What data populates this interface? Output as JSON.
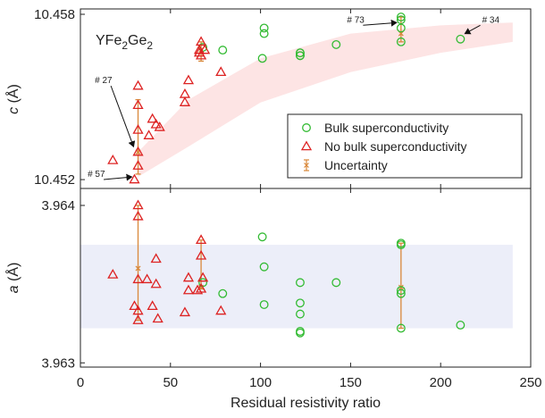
{
  "chart_data": [
    {
      "type": "scatter",
      "panel": "top",
      "ylabel_var": "c",
      "ylabel_unit": " (Å)",
      "xlim": [
        0,
        250
      ],
      "ylim": [
        10.452,
        10.458
      ],
      "yticks": [
        10.452,
        10.458
      ],
      "ytick_labels": [
        "10.452",
        "10.458"
      ],
      "material": {
        "base": "YFe",
        "sub1": "2",
        "mid": "Ge",
        "sub2": "2"
      },
      "series": [
        {
          "name": "Bulk superconductivity",
          "marker": "circle",
          "color": "#33bb33",
          "points": [
            [
              68,
              10.4568
            ],
            [
              79,
              10.4567
            ],
            [
              101,
              10.4564
            ],
            [
              102,
              10.4575
            ],
            [
              102,
              10.4573
            ],
            [
              122,
              10.4566
            ],
            [
              122,
              10.4565
            ],
            [
              122,
              10.4566
            ],
            [
              122,
              10.4565
            ],
            [
              142,
              10.4569
            ],
            [
              178,
              10.4579
            ],
            [
              178,
              10.4578
            ],
            [
              178,
              10.4575
            ],
            [
              178,
              10.457
            ],
            [
              211,
              10.4571
            ]
          ]
        },
        {
          "name": "No bulk superconductivity",
          "marker": "triangle",
          "color": "#dd2222",
          "points": [
            [
              18,
              10.4527
            ],
            [
              30,
              10.452
            ],
            [
              32,
              10.4525
            ],
            [
              32,
              10.453
            ],
            [
              32,
              10.4538
            ],
            [
              32,
              10.4547
            ],
            [
              32,
              10.4554
            ],
            [
              38,
              10.4536
            ],
            [
              40,
              10.4542
            ],
            [
              42,
              10.454
            ],
            [
              44,
              10.4539
            ],
            [
              58,
              10.4551
            ],
            [
              58,
              10.4548
            ],
            [
              60,
              10.4556
            ],
            [
              66,
              10.4566
            ],
            [
              66,
              10.4567
            ],
            [
              67,
              10.457
            ],
            [
              67,
              10.4565
            ],
            [
              69,
              10.4567
            ],
            [
              78,
              10.4559
            ]
          ]
        },
        {
          "name": "Uncertainty",
          "marker": "cross",
          "color": "#d9883a",
          "bars": [
            [
              32,
              10.4522,
              10.4549
            ],
            [
              67,
              10.4563,
              10.457
            ],
            [
              178,
              10.457,
              10.4579
            ]
          ],
          "points": [
            [
              32,
              10.453
            ],
            [
              67,
              10.4567
            ],
            [
              178,
              10.4573
            ]
          ]
        }
      ],
      "band": {
        "color": "#fde4e4",
        "lower": [
          [
            32,
            10.4521
          ],
          [
            60,
            10.4532
          ],
          [
            100,
            10.4548
          ],
          [
            150,
            10.4559
          ],
          [
            200,
            10.4566
          ],
          [
            240,
            10.457
          ]
        ],
        "upper": [
          [
            32,
            10.453
          ],
          [
            60,
            10.4549
          ],
          [
            100,
            10.4564
          ],
          [
            150,
            10.4573
          ],
          [
            200,
            10.4576
          ],
          [
            240,
            10.4577
          ]
        ]
      },
      "annotations": [
        {
          "text": "# 27",
          "x": 31,
          "y": 10.4531,
          "tx": 8,
          "ty": 10.4555
        },
        {
          "text": "# 57",
          "x": 30,
          "y": 10.452,
          "tx": 4,
          "ty": 10.4521
        },
        {
          "text": "# 73",
          "x": 177,
          "y": 10.4576,
          "tx": 148,
          "ty": 10.4577
        },
        {
          "text": "# 34",
          "x": 212,
          "y": 10.4572,
          "tx": 223,
          "ty": 10.4577
        }
      ],
      "legend": {
        "placement": "lower-right",
        "entries": [
          "Bulk superconductivity",
          "No bulk superconductivity",
          "Uncertainty"
        ]
      }
    },
    {
      "type": "scatter",
      "panel": "bottom",
      "ylabel_var": "a",
      "ylabel_unit": " (Å)",
      "xlabel": "Residual resistivity ratio",
      "xlim": [
        0,
        250
      ],
      "ylim": [
        3.963,
        3.964
      ],
      "yticks": [
        3.963,
        3.964
      ],
      "ytick_labels": [
        "3.963",
        "3.964"
      ],
      "xticks": [
        0,
        50,
        100,
        150,
        200,
        250
      ],
      "xtick_labels": [
        "0",
        "50",
        "100",
        "150",
        "200",
        "250"
      ],
      "series": [
        {
          "name": "Bulk superconductivity",
          "marker": "circle",
          "color": "#33bb33",
          "points": [
            [
              68,
              3.96351
            ],
            [
              79,
              3.96344
            ],
            [
              101,
              3.9638
            ],
            [
              102,
              3.96361
            ],
            [
              102,
              3.96337
            ],
            [
              122,
              3.96351
            ],
            [
              122,
              3.96338
            ],
            [
              122,
              3.96331
            ],
            [
              122,
              3.9632
            ],
            [
              122,
              3.96319
            ],
            [
              142,
              3.96351
            ],
            [
              178,
              3.96376
            ],
            [
              178,
              3.96375
            ],
            [
              178,
              3.96346
            ],
            [
              178,
              3.96344
            ],
            [
              178,
              3.96322
            ],
            [
              211,
              3.96324
            ]
          ]
        },
        {
          "name": "No bulk superconductivity",
          "marker": "triangle",
          "color": "#dd2222",
          "points": [
            [
              18,
              3.96356
            ],
            [
              30,
              3.96336
            ],
            [
              32,
              3.964
            ],
            [
              32,
              3.96393
            ],
            [
              32,
              3.96353
            ],
            [
              32,
              3.96333
            ],
            [
              32,
              3.96327
            ],
            [
              37,
              3.96353
            ],
            [
              40,
              3.96336
            ],
            [
              42,
              3.96366
            ],
            [
              42,
              3.9635
            ],
            [
              43,
              3.96328
            ],
            [
              58,
              3.96332
            ],
            [
              60,
              3.96346
            ],
            [
              60,
              3.96354
            ],
            [
              65,
              3.96346
            ],
            [
              67,
              3.96378
            ],
            [
              67,
              3.96368
            ],
            [
              67,
              3.96347
            ],
            [
              68,
              3.96354
            ],
            [
              78,
              3.96333
            ]
          ]
        },
        {
          "name": "Uncertainty",
          "marker": "cross",
          "color": "#d9883a",
          "bars": [
            [
              32,
              3.96327,
              3.964
            ],
            [
              67,
              3.96347,
              3.96378
            ],
            [
              178,
              3.96322,
              3.96376
            ]
          ],
          "points": [
            [
              32,
              3.9636
            ],
            [
              67,
              3.96348
            ],
            [
              178,
              3.96348
            ]
          ]
        }
      ],
      "band": {
        "color": "#eceef9",
        "x": [
          0,
          240
        ],
        "y": [
          3.96322,
          3.96375
        ]
      }
    }
  ]
}
